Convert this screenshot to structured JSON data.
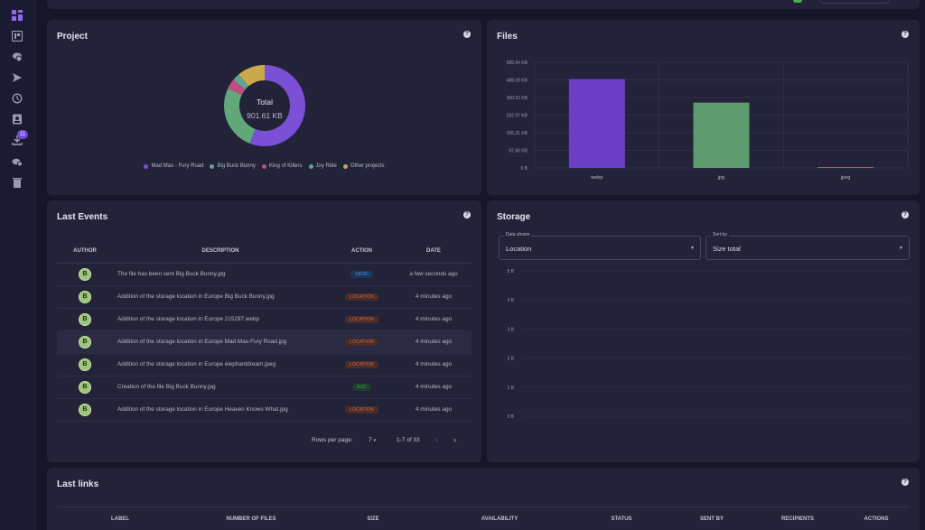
{
  "sidebar": {
    "icons": [
      "dashboard-icon",
      "project-icon",
      "storage-icon",
      "send-icon",
      "history-icon",
      "contacts-icon",
      "download-icon",
      "cloud-settings-icon",
      "trash-icon"
    ],
    "download_badge": "11"
  },
  "project": {
    "title": "Project",
    "total_label": "Total",
    "total_value": "901.61 KB",
    "legend": [
      {
        "label": "Mad Max - Fury Road",
        "color": "#7b4fd6",
        "share": 0.56
      },
      {
        "label": "Big Buck Bunny",
        "color": "#62a879",
        "share": 0.26
      },
      {
        "label": "King of Killers",
        "color": "#c24f84",
        "share": 0.04
      },
      {
        "label": "Joy Ride",
        "color": "#5fa39a",
        "share": 0.03
      },
      {
        "label": "Other projects",
        "color": "#c9a94a",
        "share": 0.11
      }
    ]
  },
  "files": {
    "title": "Files",
    "chart_data": {
      "type": "bar",
      "categories": [
        "webp",
        "jpg",
        "jpeg"
      ],
      "values": [
        505,
        371,
        2
      ],
      "y_ticks": [
        "0 B",
        "97.66 KB",
        "195.31 KB",
        "292.97 KB",
        "390.63 KB",
        "488.28 KB",
        "585.94 KB"
      ],
      "ylim": [
        0,
        600
      ],
      "colors": [
        "#6a3fc6",
        "#5e9b6e",
        "#c24f5a"
      ],
      "grid": true
    }
  },
  "events": {
    "title": "Last Events",
    "columns": [
      "AUTHOR",
      "DESCRIPTION",
      "ACTION",
      "DATE"
    ],
    "rows": [
      {
        "author": "B",
        "description": "The file has been sent Big Buck Bunny.jpg",
        "action": "SEND",
        "action_color": "blue",
        "date": "a few seconds ago"
      },
      {
        "author": "B",
        "description": "Addition of the storage location in Europe Big Buck Bunny.jpg",
        "action": "LOCATION",
        "action_color": "orange",
        "date": "4 minutes ago"
      },
      {
        "author": "B",
        "description": "Addition of the storage location in Europe 215297.webp",
        "action": "LOCATION",
        "action_color": "orange",
        "date": "4 minutes ago"
      },
      {
        "author": "B",
        "description": "Addition of the storage location in Europe Mad Max-Fury Road.jpg",
        "action": "LOCATION",
        "action_color": "orange",
        "date": "4 minutes ago"
      },
      {
        "author": "B",
        "description": "Addition of the storage location in Europe elephantdream.jpeg",
        "action": "LOCATION",
        "action_color": "orange",
        "date": "4 minutes ago"
      },
      {
        "author": "B",
        "description": "Creation of the file Big Buck Bunny.jpg",
        "action": "ADD",
        "action_color": "green",
        "date": "4 minutes ago"
      },
      {
        "author": "B",
        "description": "Addition of the storage location in Europe Heaven Knows What.jpg",
        "action": "LOCATION",
        "action_color": "orange",
        "date": "4 minutes ago"
      }
    ],
    "rows_per_page_label": "Rows per page:",
    "rows_per_page": "7",
    "range": "1-7 of 33"
  },
  "storage": {
    "title": "Storage",
    "data_shown_label": "Data shown",
    "data_shown_value": "Location",
    "sort_by_label": "Sort by",
    "sort_by_value": "Size total",
    "y_ticks": [
      "5 B",
      "4 B",
      "3 B",
      "2 B",
      "1 B",
      "0 B"
    ]
  },
  "links": {
    "title": "Last links",
    "columns": [
      "LABEL",
      "NUMBER OF FILES",
      "SIZE",
      "AVAILABILITY",
      "STATUS",
      "SENT BY",
      "RECIPIENTS",
      "ACTIONS"
    ]
  }
}
